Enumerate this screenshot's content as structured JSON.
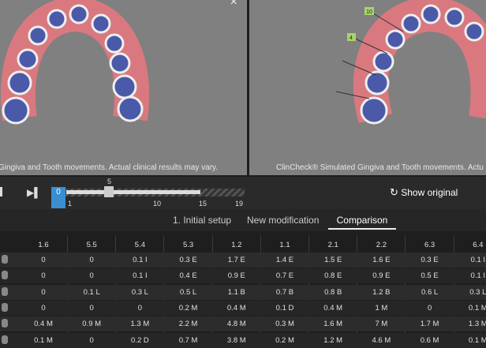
{
  "viewer": {
    "left_caption": "Gingiva and Tooth movements. Actual clinical results may vary.",
    "right_caption": "ClinCheck® Simulated Gingiva and Tooth movements. Actu",
    "tags": [
      "10",
      "4"
    ]
  },
  "timeline": {
    "current": "0",
    "marker": "5",
    "scale": [
      "1",
      "10",
      "15",
      "19"
    ],
    "show_original": "Show original"
  },
  "tabs": [
    "1. Initial setup",
    "New modification",
    "Comparison"
  ],
  "table": {
    "header": [
      "1.6",
      "5.5",
      "5.4",
      "5.3",
      "1.2",
      "1.1",
      "2.1",
      "2.2",
      "6.3",
      "6.4"
    ],
    "rows": [
      [
        "0",
        "0",
        "0.1 I",
        "0.3 E",
        "1.7 E",
        "1.4 E",
        "1.5 E",
        "1.6 E",
        "0.3 E",
        "0.1 I"
      ],
      [
        "0",
        "0",
        "0.1 I",
        "0.4 E",
        "0.9 E",
        "0.7 E",
        "0.8 E",
        "0.9 E",
        "0.5 E",
        "0.1 I"
      ],
      [
        "0",
        "0.1 L",
        "0.3 L",
        "0.5 L",
        "1.1 B",
        "0.7 B",
        "0.8 B",
        "1.2 B",
        "0.6 L",
        "0.3 L"
      ],
      [
        "0",
        "0",
        "0",
        "0.2 M",
        "0.4 M",
        "0.1 D",
        "0.4 M",
        "1 M",
        "0",
        "0.1 M"
      ],
      [
        "0.4 M",
        "0.9 M",
        "1.3 M",
        "2.2 M",
        "4.8 M",
        "0.3 M",
        "1.6 M",
        "7 M",
        "1.7 M",
        "1.3 M"
      ],
      [
        "0.1 M",
        "0",
        "0.2 D",
        "0.7 M",
        "3.8 M",
        "0.2 M",
        "1.2 M",
        "4.6 M",
        "0.6 M",
        "0.1 M"
      ]
    ]
  }
}
